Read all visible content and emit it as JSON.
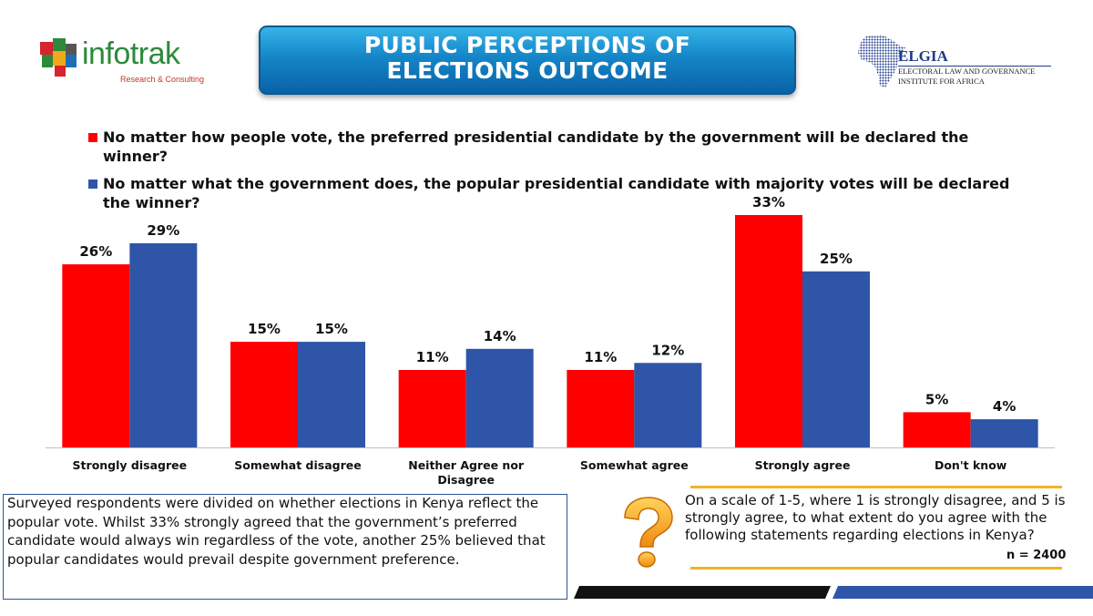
{
  "header": {
    "title_line1": "PUBLIC PERCEPTIONS OF",
    "title_line2": "ELECTIONS OUTCOME",
    "logo_left": {
      "name": "infotrak",
      "tagline": "Research & Consulting"
    },
    "logo_right": {
      "name": "ELGIA",
      "line1": "ELECTORAL LAW AND GOVERNANCE",
      "line2": "INSTITUTE FOR AFRICA"
    }
  },
  "colors": {
    "series1": "#ff0000",
    "series2": "#2f55a8",
    "banner": "#1486c8",
    "accent": "#f0b429"
  },
  "chart_data": {
    "type": "bar",
    "categories": [
      "Strongly disagree",
      "Somewhat disagree",
      "Neither Agree nor Disagree",
      "Somewhat agree",
      "Strongly agree",
      "Don't know"
    ],
    "series": [
      {
        "name": "No matter how people vote, the preferred presidential candidate by the government will be declared the winner?",
        "values": [
          26,
          15,
          11,
          11,
          33,
          5
        ],
        "labels": [
          "26%",
          "15%",
          "11%",
          "11%",
          "33%",
          "5%"
        ],
        "color": "#ff0000"
      },
      {
        "name": "No matter what the government does, the popular presidential candidate with majority votes will be declared the winner?",
        "values": [
          29,
          15,
          14,
          12,
          25,
          4
        ],
        "labels": [
          "29%",
          "15%",
          "14%",
          "12%",
          "25%",
          "4%"
        ],
        "color": "#2f55a8"
      }
    ],
    "ylim": [
      0,
      33
    ],
    "grid": false,
    "legend": "top-left"
  },
  "summary": {
    "text": "Surveyed respondents were divided on whether elections in Kenya reflect the popular vote. Whilst  33% strongly agreed that the government’s preferred candidate would always win regardless of the vote, another 25% believed that popular candidates would prevail despite government preference."
  },
  "question": {
    "text": "On a scale of 1-5, where 1 is strongly disagree, and 5 is strongly agree, to what extent do you agree with the following statements regarding elections in Kenya?",
    "sample": "n = 2400",
    "icon": "question-mark-icon"
  }
}
